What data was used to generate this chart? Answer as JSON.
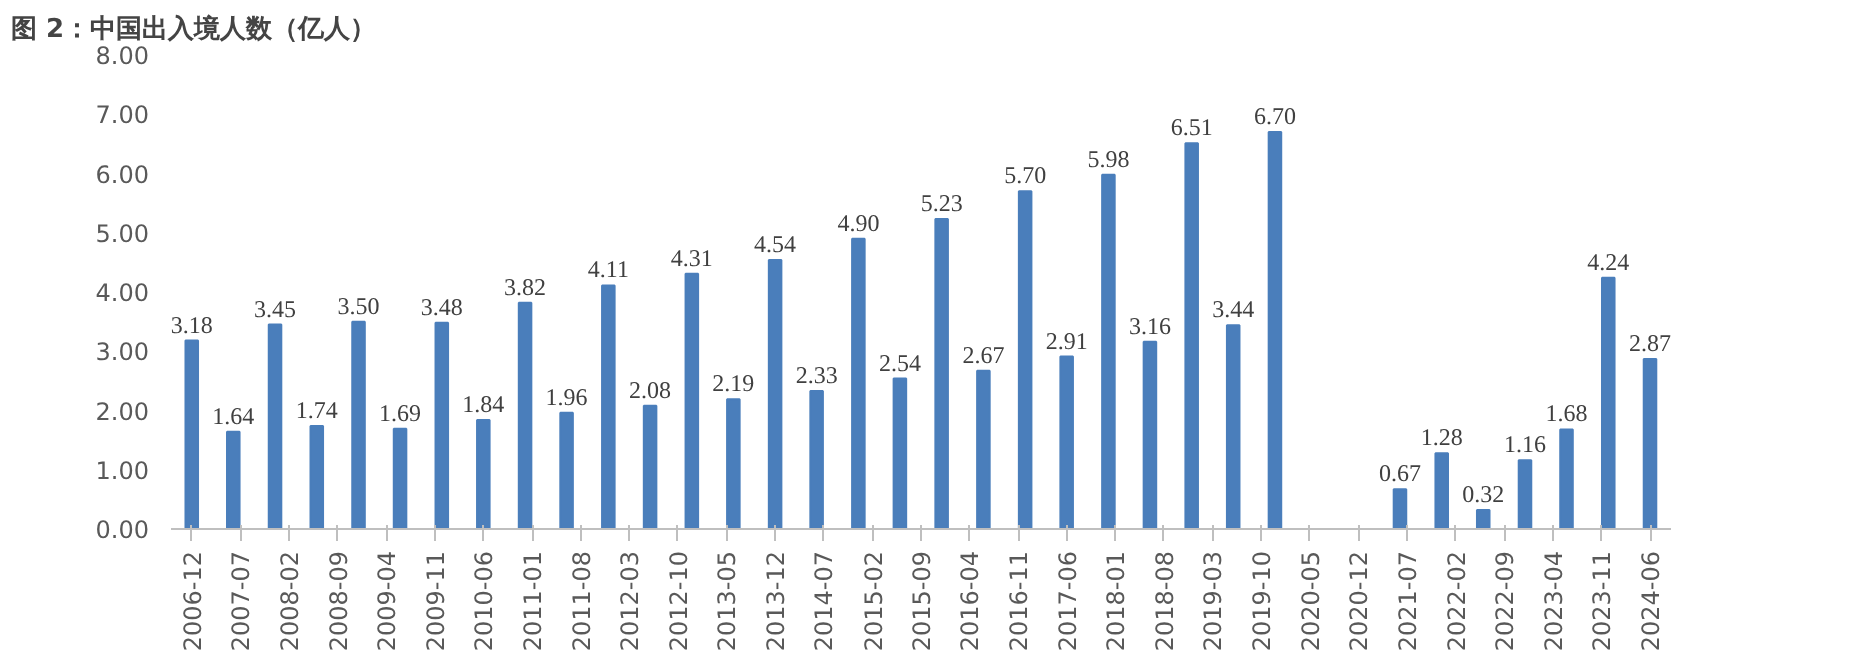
{
  "chart_data": {
    "type": "bar",
    "title": "图 2：中国出入境人数（亿人）",
    "x": [
      "2006-12",
      "2007-06",
      "2007-12",
      "2008-06",
      "2008-12",
      "2009-06",
      "2009-12",
      "2010-06",
      "2010-12",
      "2011-06",
      "2011-12",
      "2012-06",
      "2012-12",
      "2013-06",
      "2013-12",
      "2014-06",
      "2014-12",
      "2015-06",
      "2015-12",
      "2016-06",
      "2016-12",
      "2017-06",
      "2017-12",
      "2018-06",
      "2018-12",
      "2019-06",
      "2019-12",
      "2020-06",
      "2020-12",
      "2021-06",
      "2021-12",
      "2022-06",
      "2022-12",
      "2023-06",
      "2023-12",
      "2024-06"
    ],
    "values": [
      3.18,
      1.64,
      3.45,
      1.74,
      3.5,
      1.69,
      3.48,
      1.84,
      3.82,
      1.96,
      4.11,
      2.08,
      4.31,
      2.19,
      4.54,
      2.33,
      4.9,
      2.54,
      5.23,
      2.67,
      5.7,
      2.91,
      5.98,
      3.16,
      6.51,
      3.44,
      6.7,
      null,
      null,
      0.67,
      1.28,
      0.32,
      1.16,
      1.68,
      4.24,
      2.87
    ],
    "value_labels": [
      "3.18",
      "1.64",
      "3.45",
      "1.74",
      "3.50",
      "1.69",
      "3.48",
      "1.84",
      "3.82",
      "1.96",
      "4.11",
      "2.08",
      "4.31",
      "2.19",
      "4.54",
      "2.33",
      "4.90",
      "2.54",
      "5.23",
      "2.67",
      "5.70",
      "2.91",
      "5.98",
      "3.16",
      "6.51",
      "3.44",
      "6.70",
      null,
      null,
      "0.67",
      "1.28",
      "0.32",
      "1.16",
      "1.68",
      "4.24",
      "2.87"
    ],
    "color": "#4a7ebb",
    "ylim": [
      0,
      8
    ],
    "yticks": [
      {
        "value": 0,
        "label": "0.00"
      },
      {
        "value": 1,
        "label": "1.00"
      },
      {
        "value": 2,
        "label": "2.00"
      },
      {
        "value": 3,
        "label": "3.00"
      },
      {
        "value": 4,
        "label": "4.00"
      },
      {
        "value": 5,
        "label": "5.00"
      },
      {
        "value": 6,
        "label": "6.00"
      },
      {
        "value": 7,
        "label": "7.00"
      },
      {
        "value": 8,
        "label": "8.00"
      }
    ],
    "xlim": [
      "2006-09",
      "2024-09"
    ],
    "xticks": [
      "2006-12",
      "2007-07",
      "2008-02",
      "2008-09",
      "2009-04",
      "2009-11",
      "2010-06",
      "2011-01",
      "2011-08",
      "2012-03",
      "2012-10",
      "2013-05",
      "2013-12",
      "2014-07",
      "2015-02",
      "2015-09",
      "2016-04",
      "2016-11",
      "2017-06",
      "2018-01",
      "2018-08",
      "2019-03",
      "2019-10",
      "2020-05",
      "2020-12",
      "2021-07",
      "2022-02",
      "2022-09",
      "2023-04",
      "2023-11",
      "2024-06"
    ],
    "grid": false
  }
}
